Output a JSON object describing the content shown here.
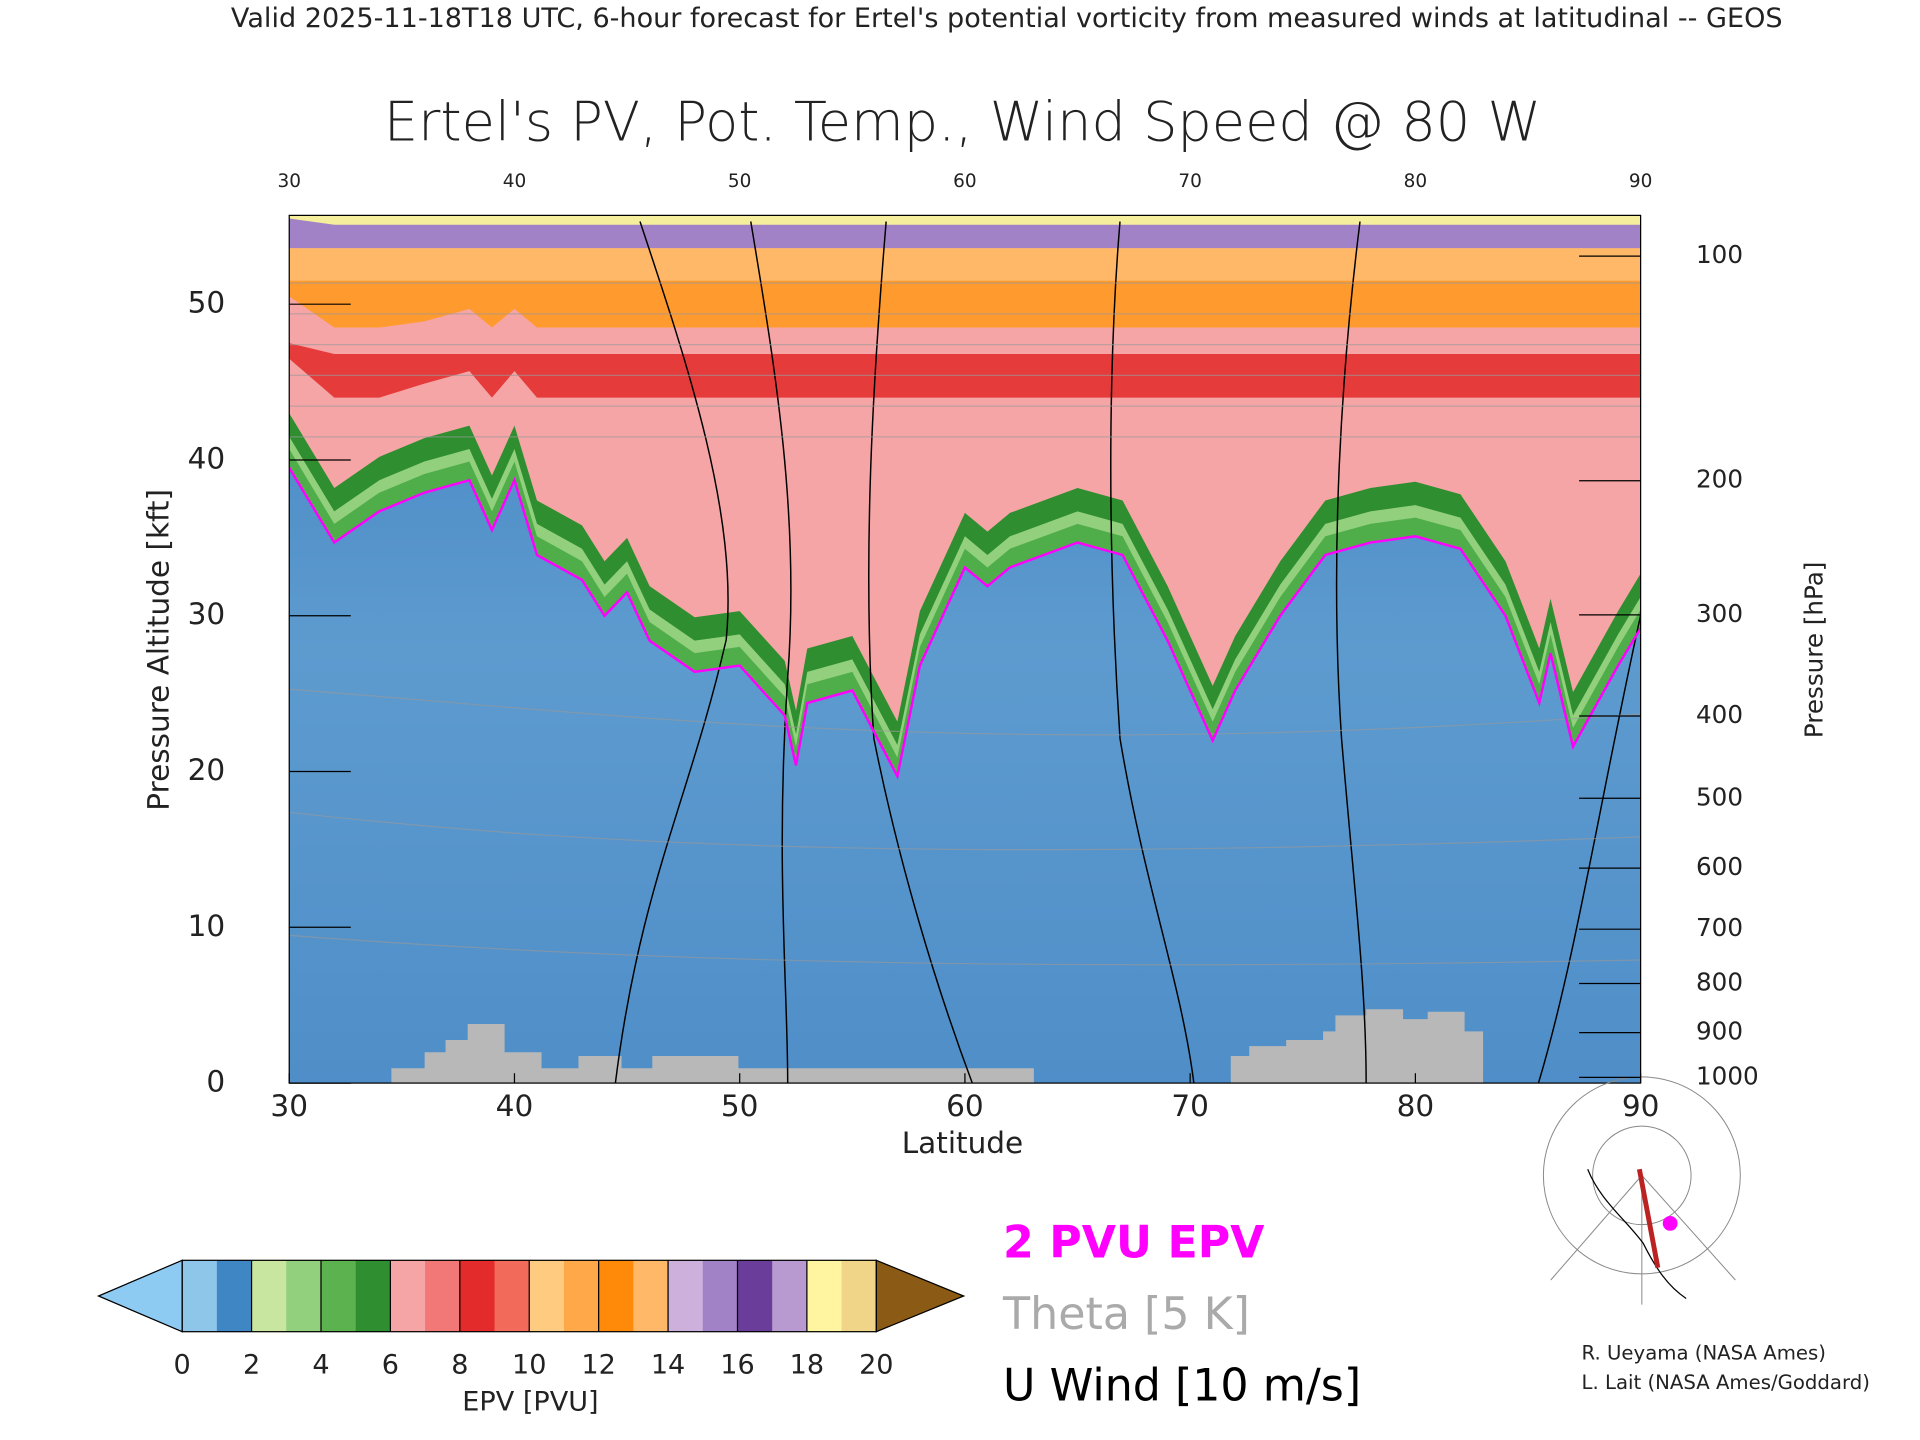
{
  "header": "Valid 2025-11-18T18 UTC, 6-hour forecast for Ertel's potential vorticity from measured winds at latitudinal -- GEOS",
  "chart_data": {
    "type": "contour",
    "title": "Ertel's PV, Pot. Temp., Wind Speed @ 80 W",
    "x_label": "Latitude",
    "y_label": "Pressure Altitude [kft]",
    "y2_label": "Pressure [hPa]",
    "xlim": [
      30,
      90
    ],
    "xticks": [
      30,
      40,
      50,
      60,
      70,
      80,
      90
    ],
    "ylim": [
      0,
      55.7
    ],
    "yticks": [
      0,
      10,
      20,
      30,
      40,
      50
    ],
    "y2lim": [
      1013.25,
      88.2
    ],
    "y2ticks": [
      1000,
      900,
      800,
      700,
      600,
      500,
      400,
      300,
      200,
      100
    ],
    "y2scale": "pressure-altitude",
    "series": [
      {
        "name": "2 PVU EPV",
        "color": "#ff00ff",
        "x": [
          30,
          32,
          34,
          36,
          38,
          39,
          40,
          41,
          43,
          44,
          45,
          46,
          48,
          50,
          52,
          52.5,
          53,
          55,
          57,
          58,
          60,
          61,
          62,
          65,
          67,
          69,
          71,
          72,
          74,
          76,
          78,
          80,
          82,
          84,
          85.5,
          86,
          87,
          89,
          90
        ],
        "values": [
          39.5,
          34.7,
          36.7,
          37.9,
          38.7,
          35.5,
          38.7,
          33.9,
          32.3,
          30,
          31.5,
          28.4,
          26.4,
          26.8,
          23.6,
          20.4,
          24.4,
          25.2,
          19.7,
          26.8,
          33.1,
          31.9,
          33.1,
          34.7,
          33.9,
          28.4,
          22,
          25.2,
          30,
          33.9,
          34.7,
          35.1,
          34.3,
          30,
          24.4,
          27.6,
          21.6,
          26.8,
          29.2
        ]
      },
      {
        "name": "Theta [5 K]",
        "color": "#aaaaaa"
      },
      {
        "name": "U Wind [10 m/s]",
        "color": "#000000"
      }
    ],
    "colorbar": {
      "label": "EPV [PVU]",
      "ticks": [
        0,
        2,
        4,
        6,
        8,
        10,
        12,
        14,
        16,
        18,
        20
      ],
      "colors": [
        "#8ec6ea",
        "#3f86c4",
        "#c8e6a0",
        "#93d07e",
        "#5cb24f",
        "#2f8f30",
        "#f5a5a5",
        "#f27878",
        "#e32b2b",
        "#f26a5a",
        "#ffcb80",
        "#ffa84a",
        "#ff8a0a",
        "#ffb868",
        "#cdb0dc",
        "#a282c6",
        "#6a3d9a",
        "#b89ad0",
        "#fff4a0",
        "#f0d488"
      ],
      "under_color": "#8ecbf2",
      "over_color": "#8b5a14"
    }
  },
  "credits": [
    "R. Ueyama (NASA Ames)",
    "L. Lait (NASA Ames/Goddard)"
  ]
}
